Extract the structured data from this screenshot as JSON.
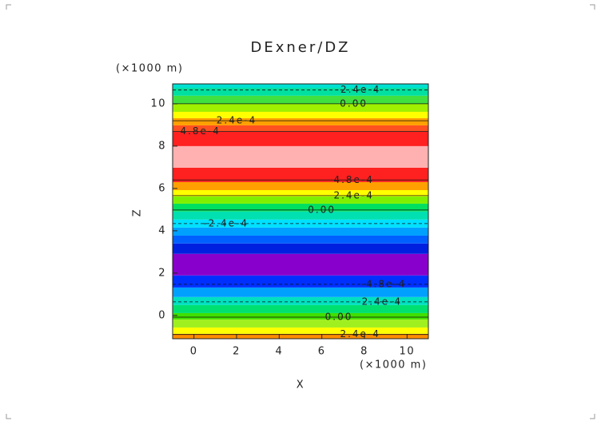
{
  "chart_data": {
    "type": "contourf",
    "title": "DExner/DZ",
    "x_label": "X",
    "y_label": "Z",
    "x_unit": "(×1000 m)",
    "y_unit": "(×1000 m)",
    "xlim": [
      -1,
      11
    ],
    "ylim": [
      -1.1,
      10.94
    ],
    "xticks": [
      0,
      2,
      4,
      6,
      8,
      10
    ],
    "yticks": [
      0,
      2,
      4,
      6,
      8,
      10
    ],
    "bands": [
      {
        "z0": -1.1,
        "z1": -0.87,
        "color": "#ff8c00"
      },
      {
        "z0": -0.87,
        "z1": -0.57,
        "color": "#ffff00"
      },
      {
        "z0": -0.57,
        "z1": -0.19,
        "color": "#a0f020"
      },
      {
        "z0": -0.19,
        "z1": 0.11,
        "color": "#40e000"
      },
      {
        "z0": 0.11,
        "z1": 0.49,
        "color": "#00e070"
      },
      {
        "z0": 0.49,
        "z1": 0.87,
        "color": "#00e0c0"
      },
      {
        "z0": 0.87,
        "z1": 1.32,
        "color": "#00a0ff"
      },
      {
        "z0": 1.32,
        "z1": 1.89,
        "color": "#0030ff"
      },
      {
        "z0": 1.89,
        "z1": 2.91,
        "color": "#8800cc"
      },
      {
        "z0": 2.91,
        "z1": 3.4,
        "color": "#0020e0"
      },
      {
        "z0": 3.4,
        "z1": 3.77,
        "color": "#0060ff"
      },
      {
        "z0": 3.77,
        "z1": 4.15,
        "color": "#00a0ff"
      },
      {
        "z0": 4.15,
        "z1": 4.53,
        "color": "#00e0ff"
      },
      {
        "z0": 4.53,
        "z1": 4.91,
        "color": "#00e0b0"
      },
      {
        "z0": 4.91,
        "z1": 5.28,
        "color": "#00e060"
      },
      {
        "z0": 5.28,
        "z1": 5.62,
        "color": "#80f000"
      },
      {
        "z0": 5.62,
        "z1": 5.92,
        "color": "#ffff00"
      },
      {
        "z0": 5.92,
        "z1": 6.3,
        "color": "#ffa000"
      },
      {
        "z0": 6.3,
        "z1": 6.98,
        "color": "#ff2020"
      },
      {
        "z0": 6.98,
        "z1": 8.0,
        "color": "#ffb0b0"
      },
      {
        "z0": 8.0,
        "z1": 8.68,
        "color": "#ff2020"
      },
      {
        "z0": 8.68,
        "z1": 8.98,
        "color": "#ff5020"
      },
      {
        "z0": 8.98,
        "z1": 9.32,
        "color": "#ffa000"
      },
      {
        "z0": 9.32,
        "z1": 9.62,
        "color": "#ffff00"
      },
      {
        "z0": 9.62,
        "z1": 10.0,
        "color": "#a0f000"
      },
      {
        "z0": 10.0,
        "z1": 10.38,
        "color": "#40e040"
      },
      {
        "z0": 10.38,
        "z1": 10.75,
        "color": "#00e0a0"
      },
      {
        "z0": 10.75,
        "z1": 10.94,
        "color": "#00e0d0"
      }
    ],
    "contours": [
      {
        "z": 10.65,
        "x": 7.7,
        "label": "-2.4e-4"
      },
      {
        "z": 10.0,
        "x": 7.5,
        "label": "0.00"
      },
      {
        "z": 9.2,
        "x": 2.0,
        "label": "2.4e-4"
      },
      {
        "z": 8.7,
        "x": 0.3,
        "label": "4.8e-4"
      },
      {
        "z": 6.4,
        "x": 7.5,
        "label": "4.8e-4"
      },
      {
        "z": 5.66,
        "x": 7.5,
        "label": "2.4e-4"
      },
      {
        "z": 4.98,
        "x": 6.0,
        "label": "0.00"
      },
      {
        "z": 4.34,
        "x": 1.5,
        "label": "-2.4e-4"
      },
      {
        "z": 1.47,
        "x": 8.9,
        "label": "-4.8e-4"
      },
      {
        "z": 0.64,
        "x": 8.7,
        "label": "-2.4e-4"
      },
      {
        "z": -0.08,
        "x": 6.8,
        "label": "0.00"
      },
      {
        "z": -0.9,
        "x": 7.8,
        "label": "2.4e-4"
      }
    ]
  }
}
